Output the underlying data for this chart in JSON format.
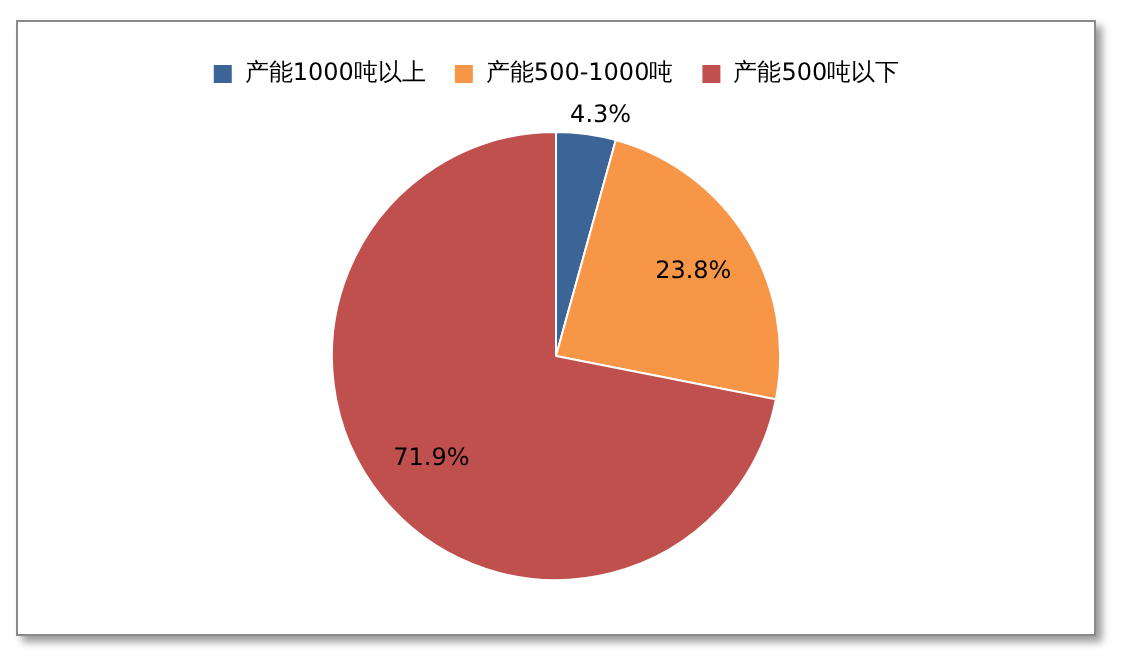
{
  "chart_data": {
    "type": "pie",
    "categories": [
      "产能1000吨以上",
      "产能500-1000吨",
      "产能500吨以下"
    ],
    "values": [
      4.3,
      23.8,
      71.9
    ],
    "colors": [
      "#3c6496",
      "#f79646",
      "#c0504d"
    ],
    "value_labels": [
      "4.3%",
      "23.8%",
      "71.9%"
    ],
    "legend": "top"
  }
}
